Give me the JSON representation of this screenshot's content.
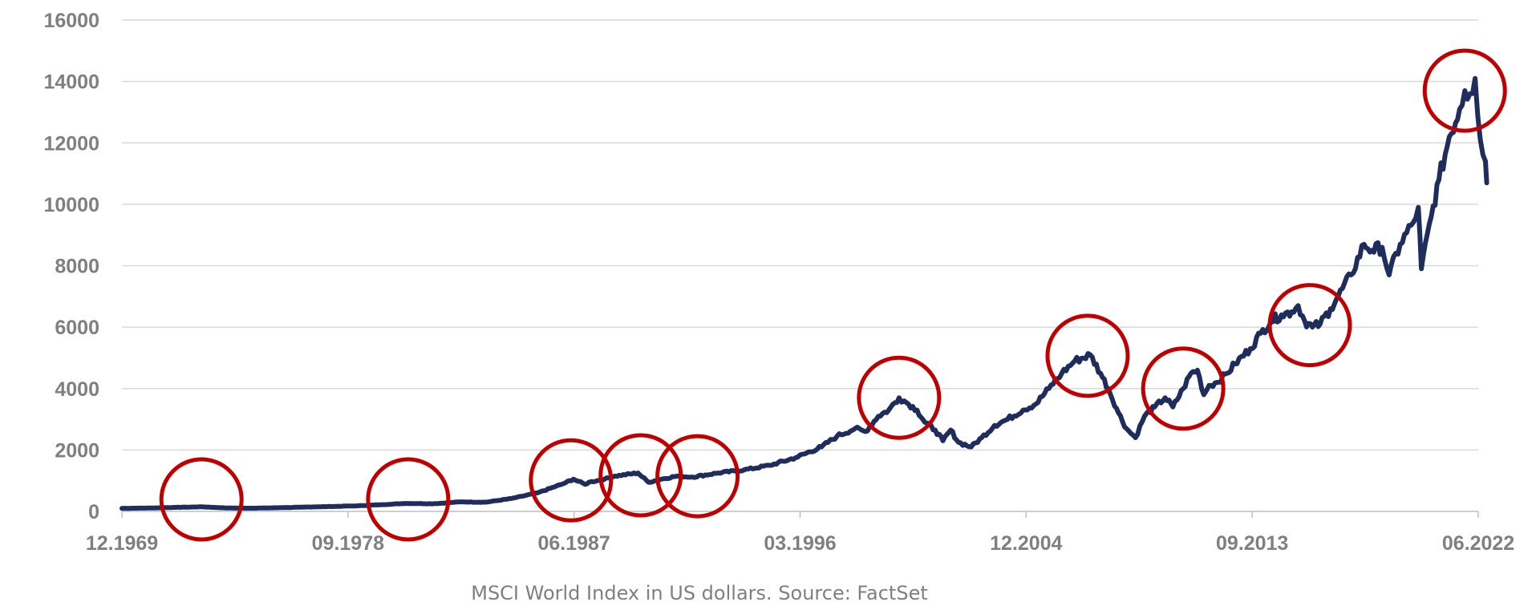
{
  "chart_data": {
    "type": "line",
    "title": "",
    "xlabel": "",
    "ylabel": "",
    "ylim": [
      0,
      16000
    ],
    "grid": true,
    "y_ticks": [
      0,
      2000,
      4000,
      6000,
      8000,
      10000,
      12000,
      14000,
      16000
    ],
    "x_tick_labels": [
      "12.1969",
      "09.1978",
      "06.1987",
      "03.1996",
      "12.2004",
      "09.2013",
      "06.2022"
    ],
    "note": "MSCI World Index in US dollars. Source: FactSet",
    "colors": {
      "line": "#1f2d5c",
      "highlight": "#c00000",
      "grid": "#d9d9d9",
      "text": "#7f7f7f"
    },
    "series": [
      {
        "x": [
          1969.92,
          1971.0,
          1972.0,
          1973.0,
          1974.0,
          1975.0,
          1976.0,
          1978.0,
          1979.0,
          1980.0,
          1980.9,
          1982.0,
          1983.0,
          1984.0,
          1985.0,
          1986.0,
          1987.0,
          1987.4,
          1987.85,
          1988.0,
          1988.6,
          1989.0,
          1989.9,
          1990.3,
          1990.8,
          1991.4,
          1992.0,
          1993.0,
          1994.0,
          1995.0,
          1996.0,
          1997.0,
          1997.6,
          1998.3,
          1998.7,
          1999.2,
          1999.6,
          2000.0,
          2000.2,
          2000.7,
          2001.0,
          2001.4,
          2001.7,
          2002.0,
          2002.3,
          2002.8,
          2003.2,
          2003.7,
          2004.2,
          2004.8,
          2005.3,
          2005.8,
          2006.3,
          2006.8,
          2007.4,
          2007.8,
          2008.1,
          2008.5,
          2008.8,
          2009.15,
          2009.5,
          2009.9,
          2010.3,
          2010.6,
          2011.0,
          2011.3,
          2011.55,
          2011.8,
          2012.0,
          2012.3,
          2012.7,
          2013.0,
          2013.6,
          2014.0,
          2014.4,
          2014.8,
          2015.2,
          2015.45,
          2015.7,
          2016.0,
          2016.3,
          2016.7,
          2017.0,
          2017.5,
          2018.0,
          2018.3,
          2018.7,
          2018.97,
          2019.4,
          2019.9,
          2020.1,
          2020.22,
          2020.6,
          2020.9,
          2021.3,
          2021.7,
          2021.9,
          2022.1,
          2022.3,
          2022.5,
          2022.7,
          2022.75
        ],
        "y": [
          100,
          110,
          130,
          150,
          110,
          105,
          120,
          160,
          180,
          220,
          260,
          250,
          310,
          300,
          420,
          600,
          900,
          1050,
          880,
          950,
          1050,
          1150,
          1250,
          950,
          1050,
          1150,
          1120,
          1250,
          1350,
          1500,
          1750,
          2100,
          2450,
          2700,
          2600,
          3100,
          3300,
          3700,
          3600,
          3300,
          2900,
          2650,
          2300,
          2650,
          2250,
          2100,
          2400,
          2800,
          3000,
          3300,
          3500,
          4000,
          4500,
          4900,
          5100,
          4500,
          4000,
          3200,
          2700,
          2400,
          3100,
          3400,
          3700,
          3400,
          4000,
          4500,
          4600,
          3800,
          4100,
          4200,
          4500,
          4800,
          5300,
          5800,
          6200,
          6400,
          6500,
          6700,
          6200,
          6000,
          6100,
          6600,
          7000,
          7700,
          8700,
          8500,
          8600,
          7700,
          8700,
          9400,
          9900,
          7900,
          9600,
          10800,
          12200,
          13100,
          13700,
          13600,
          14100,
          12100,
          11400,
          10700
        ]
      }
    ],
    "highlighted_periods": [
      1973.0,
      1981.0,
      1987.3,
      1990.0,
      1992.2,
      2000.0,
      2007.3,
      2011.0,
      2015.9,
      2021.9
    ]
  }
}
